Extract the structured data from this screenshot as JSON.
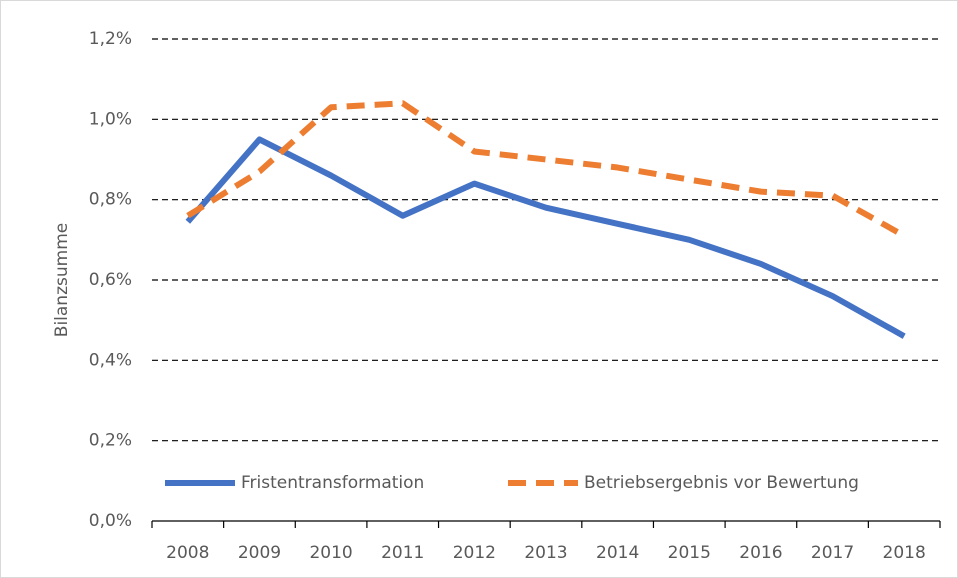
{
  "chart_data": {
    "type": "line",
    "y_label": "Bilanzsumme",
    "categories": [
      "2008",
      "2009",
      "2010",
      "2011",
      "2012",
      "2013",
      "2014",
      "2015",
      "2016",
      "2017",
      "2018"
    ],
    "series": [
      {
        "name": "Fristentransformation",
        "color": "#4472c4",
        "dash": "solid",
        "values": [
          0.745,
          0.95,
          0.86,
          0.76,
          0.84,
          0.78,
          0.74,
          0.7,
          0.64,
          0.56,
          0.46
        ]
      },
      {
        "name": "Betriebsergebnis vor Bewertung",
        "color": "#ed7d31",
        "dash": "dashed",
        "values": [
          0.76,
          0.87,
          1.03,
          1.04,
          0.92,
          0.9,
          0.88,
          0.85,
          0.82,
          0.81,
          0.71
        ]
      }
    ],
    "ylim": [
      0,
      1.2
    ],
    "yticks": [
      {
        "value": 0,
        "label": "0,0%"
      },
      {
        "value": 0.2,
        "label": "0,2%"
      },
      {
        "value": 0.4,
        "label": "0,4%"
      },
      {
        "value": 0.6,
        "label": "0,6%"
      },
      {
        "value": 0.8,
        "label": "0,8%"
      },
      {
        "value": 1.0,
        "label": "1,0%"
      },
      {
        "value": 1.2,
        "label": "1,2%"
      }
    ],
    "grid": true,
    "legend": "bottom-left"
  }
}
